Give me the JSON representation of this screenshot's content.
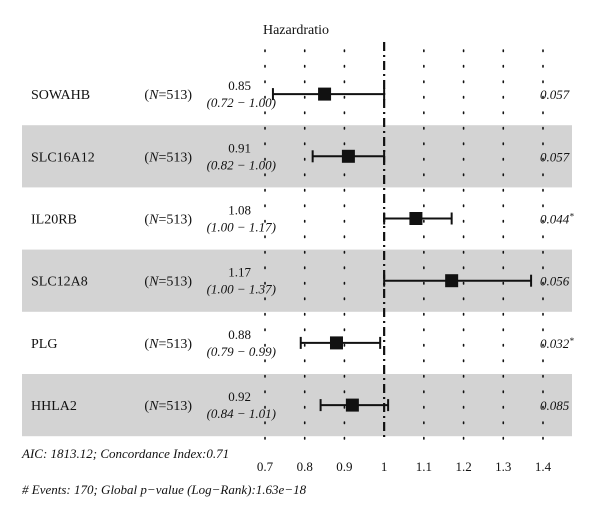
{
  "chart_data": {
    "type": "forest",
    "title": "Hazardratio",
    "x_ticks": [
      0.7,
      0.8,
      0.9,
      1,
      1.1,
      1.2,
      1.3,
      1.4
    ],
    "x_tick_labels": [
      "0.7",
      "0.8",
      "0.9",
      "1",
      "1.1",
      "1.2",
      "1.3",
      "1.4"
    ],
    "xlim": [
      0.7,
      1.4
    ],
    "reference_line": 1,
    "rows": [
      {
        "variable": "SOWAHB",
        "n_label": "(N=513)",
        "hr": 0.85,
        "hr_text": "0.85",
        "lower": 0.72,
        "upper": 1.0,
        "ci_text": "(0.72 − 1.00)",
        "p_text": "0.057",
        "shaded": false
      },
      {
        "variable": "SLC16A12",
        "n_label": "(N=513)",
        "hr": 0.91,
        "hr_text": "0.91",
        "lower": 0.82,
        "upper": 1.0,
        "ci_text": "(0.82 − 1.00)",
        "p_text": "0.057",
        "shaded": true
      },
      {
        "variable": "IL20RB",
        "n_label": "(N=513)",
        "hr": 1.08,
        "hr_text": "1.08",
        "lower": 1.0,
        "upper": 1.17,
        "ci_text": "(1.00 − 1.17)",
        "p_text": "0.044*",
        "shaded": false
      },
      {
        "variable": "SLC12A8",
        "n_label": "(N=513)",
        "hr": 1.17,
        "hr_text": "1.17",
        "lower": 1.0,
        "upper": 1.37,
        "ci_text": "(1.00 − 1.37)",
        "p_text": "0.056",
        "shaded": true
      },
      {
        "variable": "PLG",
        "n_label": "(N=513)",
        "hr": 0.88,
        "hr_text": "0.88",
        "lower": 0.79,
        "upper": 0.99,
        "ci_text": "(0.79 − 0.99)",
        "p_text": "0.032*",
        "shaded": false
      },
      {
        "variable": "HHLA2",
        "n_label": "(N=513)",
        "hr": 0.92,
        "hr_text": "0.92",
        "lower": 0.84,
        "upper": 1.01,
        "ci_text": "(0.84 − 1.01)",
        "p_text": "0.085",
        "shaded": true
      }
    ],
    "footnote_1": "AIC: 1813.12; Concordance Index:0.71",
    "footnote_2": "# Events: 170; Global p−value (Log−Rank):1.63e−18",
    "colors": {
      "shade": "#d3d3d3",
      "ink": "#111111"
    }
  }
}
